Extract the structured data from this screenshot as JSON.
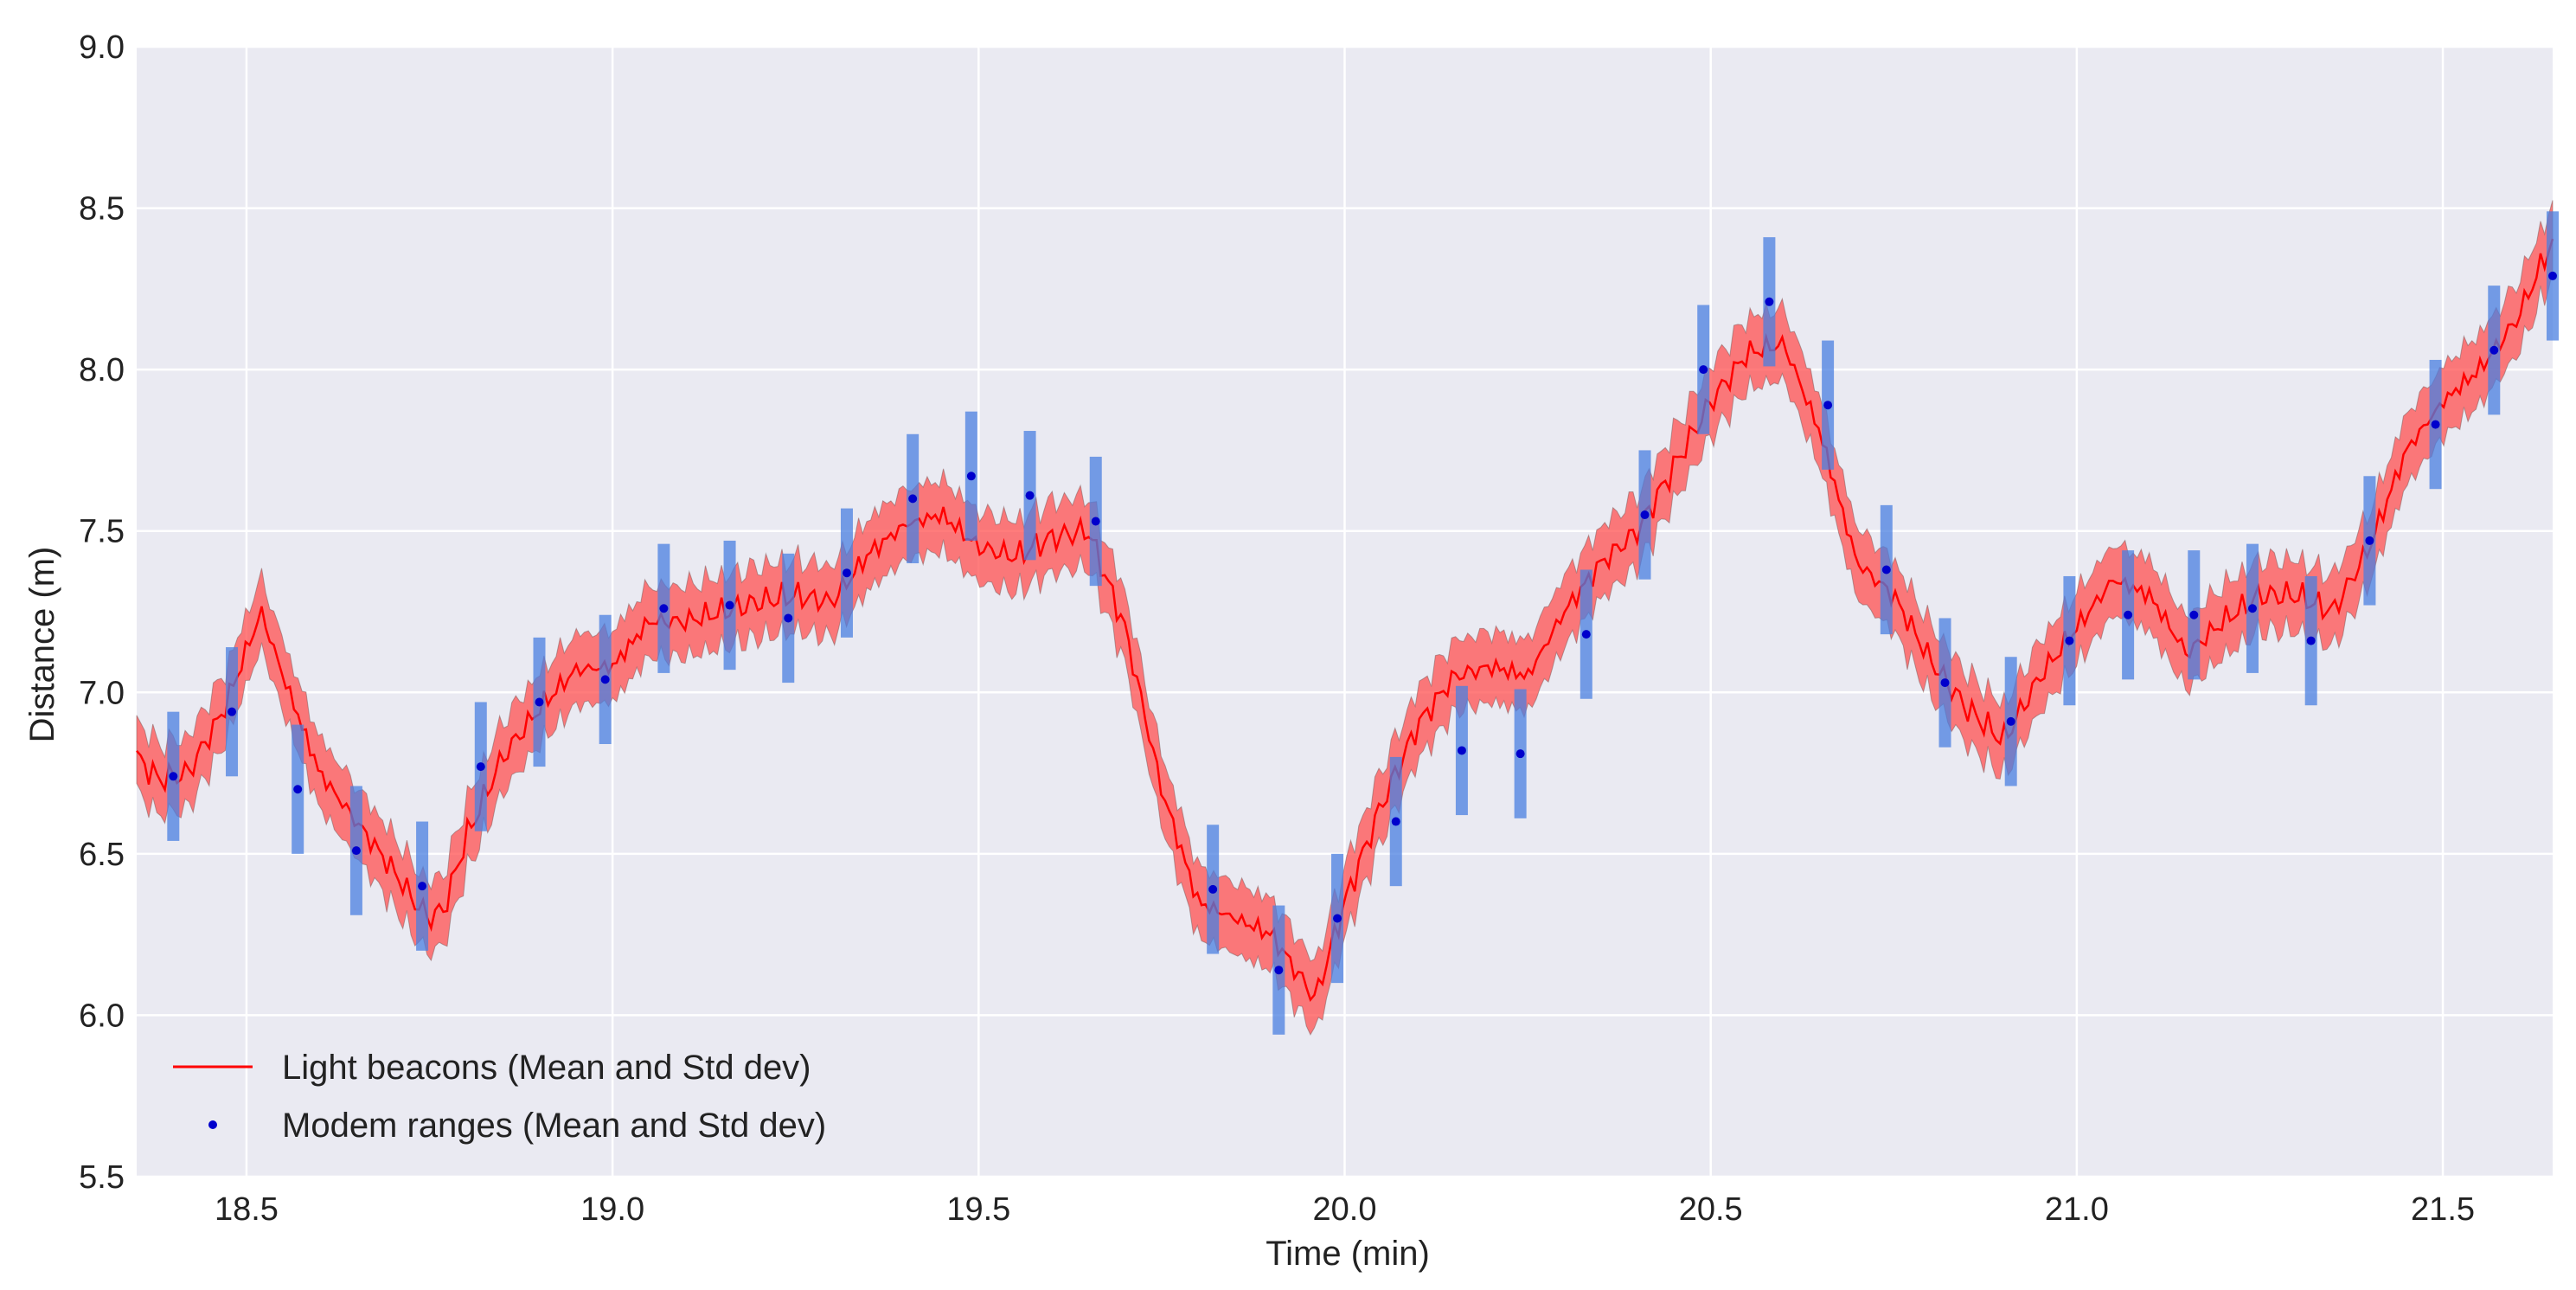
{
  "chart_data": {
    "type": "line",
    "title": "",
    "xlabel": "Time (min)",
    "ylabel": "Distance (m)",
    "xlim": [
      18.35,
      21.65
    ],
    "ylim": [
      5.5,
      9.0
    ],
    "xticks": [
      18.5,
      19.0,
      19.5,
      20.0,
      20.5,
      21.0,
      21.5
    ],
    "xtick_labels": [
      "18.5",
      "19.0",
      "19.5",
      "20.0",
      "20.5",
      "21.0",
      "21.5"
    ],
    "yticks": [
      5.5,
      6.0,
      6.5,
      7.0,
      7.5,
      8.0,
      8.5,
      9.0
    ],
    "ytick_labels": [
      "5.5",
      "6.0",
      "6.5",
      "7.0",
      "7.5",
      "8.0",
      "8.5",
      "9.0"
    ],
    "grid": true,
    "background": "#eaeaf2",
    "legend_position": "lower-left",
    "series": [
      {
        "name": "Light beacons (Mean and Std dev)",
        "kind": "line_with_band",
        "color": "#ff0000",
        "band_color": "#ff5050",
        "std": 0.11,
        "x": [
          18.35,
          18.38,
          18.42,
          18.47,
          18.52,
          18.55,
          18.6,
          18.65,
          18.7,
          18.73,
          18.75,
          18.77,
          18.8,
          18.85,
          18.9,
          18.95,
          19.0,
          19.05,
          19.1,
          19.15,
          19.2,
          19.25,
          19.3,
          19.35,
          19.4,
          19.45,
          19.5,
          19.55,
          19.6,
          19.65,
          19.7,
          19.75,
          19.8,
          19.85,
          19.9,
          19.93,
          19.96,
          20.0,
          20.05,
          20.1,
          20.15,
          20.2,
          20.25,
          20.3,
          20.35,
          20.4,
          20.45,
          20.5,
          20.55,
          20.6,
          20.65,
          20.7,
          20.75,
          20.8,
          20.85,
          20.9,
          20.95,
          21.0,
          21.05,
          21.1,
          21.15,
          21.2,
          21.25,
          21.3,
          21.35,
          21.4,
          21.45,
          21.5,
          21.55,
          21.6,
          21.65
        ],
        "values": [
          6.8,
          6.73,
          6.75,
          6.95,
          7.25,
          7.05,
          6.75,
          6.6,
          6.45,
          6.35,
          6.3,
          6.33,
          6.55,
          6.8,
          6.95,
          7.07,
          7.08,
          7.22,
          7.22,
          7.25,
          7.28,
          7.3,
          7.28,
          7.43,
          7.52,
          7.55,
          7.45,
          7.42,
          7.48,
          7.5,
          7.2,
          6.7,
          6.35,
          6.3,
          6.25,
          6.15,
          6.05,
          6.35,
          6.65,
          6.9,
          7.05,
          7.08,
          7.05,
          7.25,
          7.4,
          7.5,
          7.7,
          7.9,
          8.05,
          8.08,
          7.8,
          7.4,
          7.3,
          7.1,
          6.95,
          6.85,
          7.05,
          7.2,
          7.35,
          7.3,
          7.12,
          7.22,
          7.3,
          7.3,
          7.25,
          7.45,
          7.75,
          7.9,
          8.0,
          8.15,
          8.4
        ]
      },
      {
        "name": "Modem ranges (Mean and Std dev)",
        "kind": "points_with_error_bars",
        "color": "#0000cc",
        "bar_color": "#4a7fe0",
        "std": 0.2,
        "x": [
          18.4,
          18.48,
          18.57,
          18.65,
          18.74,
          18.82,
          18.9,
          18.99,
          19.07,
          19.16,
          19.24,
          19.32,
          19.41,
          19.49,
          19.57,
          19.66,
          19.82,
          19.91,
          19.99,
          20.07,
          20.16,
          20.24,
          20.33,
          20.41,
          20.49,
          20.58,
          20.66,
          20.74,
          20.82,
          20.91,
          20.99,
          21.07,
          21.16,
          21.24,
          21.32,
          21.4,
          21.49,
          21.57,
          21.65
        ],
        "values": [
          6.74,
          6.94,
          6.7,
          6.51,
          6.4,
          6.77,
          6.97,
          7.04,
          7.26,
          7.27,
          7.23,
          7.37,
          7.6,
          7.67,
          7.61,
          7.53,
          6.39,
          6.14,
          6.3,
          6.6,
          6.82,
          6.81,
          7.18,
          7.55,
          8.0,
          8.21,
          7.89,
          7.38,
          7.03,
          6.91,
          7.16,
          7.24,
          7.24,
          7.26,
          7.16,
          7.47,
          7.83,
          8.06,
          8.29
        ]
      }
    ]
  }
}
